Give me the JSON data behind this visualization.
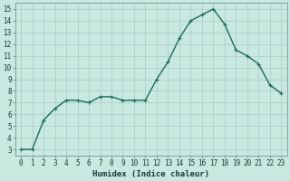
{
  "x": [
    0,
    1,
    2,
    3,
    4,
    5,
    6,
    7,
    8,
    9,
    10,
    11,
    12,
    13,
    14,
    15,
    16,
    17,
    18,
    19,
    20,
    21,
    22,
    23
  ],
  "y": [
    3,
    3,
    5.5,
    6.5,
    7.2,
    7.2,
    7.0,
    7.5,
    7.5,
    7.2,
    7.2,
    7.2,
    9.0,
    10.5,
    12.5,
    14.0,
    14.5,
    15.0,
    13.7,
    11.5,
    11.0,
    10.3,
    8.5,
    7.8
  ],
  "line_color": "#1a6b5a",
  "marker": "+",
  "marker_size": 3,
  "marker_edge_width": 0.8,
  "bg_color": "#c8e8e0",
  "grid_color": "#a8ccc4",
  "xlabel": "Humidex (Indice chaleur)",
  "xlim": [
    -0.5,
    23.5
  ],
  "ylim": [
    2.5,
    15.5
  ],
  "yticks": [
    3,
    4,
    5,
    6,
    7,
    8,
    9,
    10,
    11,
    12,
    13,
    14,
    15
  ],
  "xticks": [
    0,
    1,
    2,
    3,
    4,
    5,
    6,
    7,
    8,
    9,
    10,
    11,
    12,
    13,
    14,
    15,
    16,
    17,
    18,
    19,
    20,
    21,
    22,
    23
  ],
  "xtick_labels": [
    "0",
    "1",
    "2",
    "3",
    "4",
    "5",
    "6",
    "7",
    "8",
    "9",
    "10",
    "11",
    "12",
    "13",
    "14",
    "15",
    "16",
    "17",
    "18",
    "19",
    "20",
    "21",
    "22",
    "23"
  ],
  "line_width": 1.0,
  "tick_fontsize": 5.5,
  "xlabel_fontsize": 6.5
}
